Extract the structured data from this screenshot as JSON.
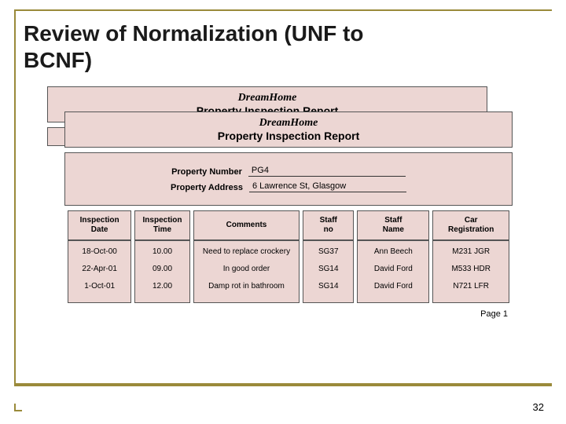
{
  "title_line1": "Review of Normalization (UNF to",
  "title_line2": "BCNF)",
  "brand": "DreamHome",
  "report_title": "Property Inspection Report",
  "meta": {
    "property_number_label": "Property Number",
    "property_number_value": "PG4",
    "property_address_label": "Property Address",
    "property_address_value": "6 Lawrence St, Glasgow"
  },
  "columns": [
    "Inspection Date",
    "Inspection Time",
    "Comments",
    "Staff no",
    "Staff Name",
    "Car Registration"
  ],
  "col_widths": [
    "15%",
    "13%",
    "25%",
    "12%",
    "17%",
    "18%"
  ],
  "rows": [
    {
      "date": "18-Oct-00",
      "time": "10.00",
      "comments": "Need to replace crockery",
      "staff_no": "SG37",
      "staff_name": "Ann Beech",
      "car": "M231 JGR"
    },
    {
      "date": "22-Apr-01",
      "time": "09.00",
      "comments": "In good order",
      "staff_no": "SG14",
      "staff_name": "David Ford",
      "car": "M533 HDR"
    },
    {
      "date": "1-Oct-01",
      "time": "12.00",
      "comments": "Damp rot in bathroom",
      "staff_no": "SG14",
      "staff_name": "David Ford",
      "car": "N721 LFR"
    }
  ],
  "page_label": "Page 1",
  "slide_number": "32",
  "colors": {
    "accent": "#9a8a3a",
    "panel_bg": "#ecd6d3",
    "border": "#555555",
    "text": "#1a1a1a",
    "bg": "#ffffff"
  }
}
